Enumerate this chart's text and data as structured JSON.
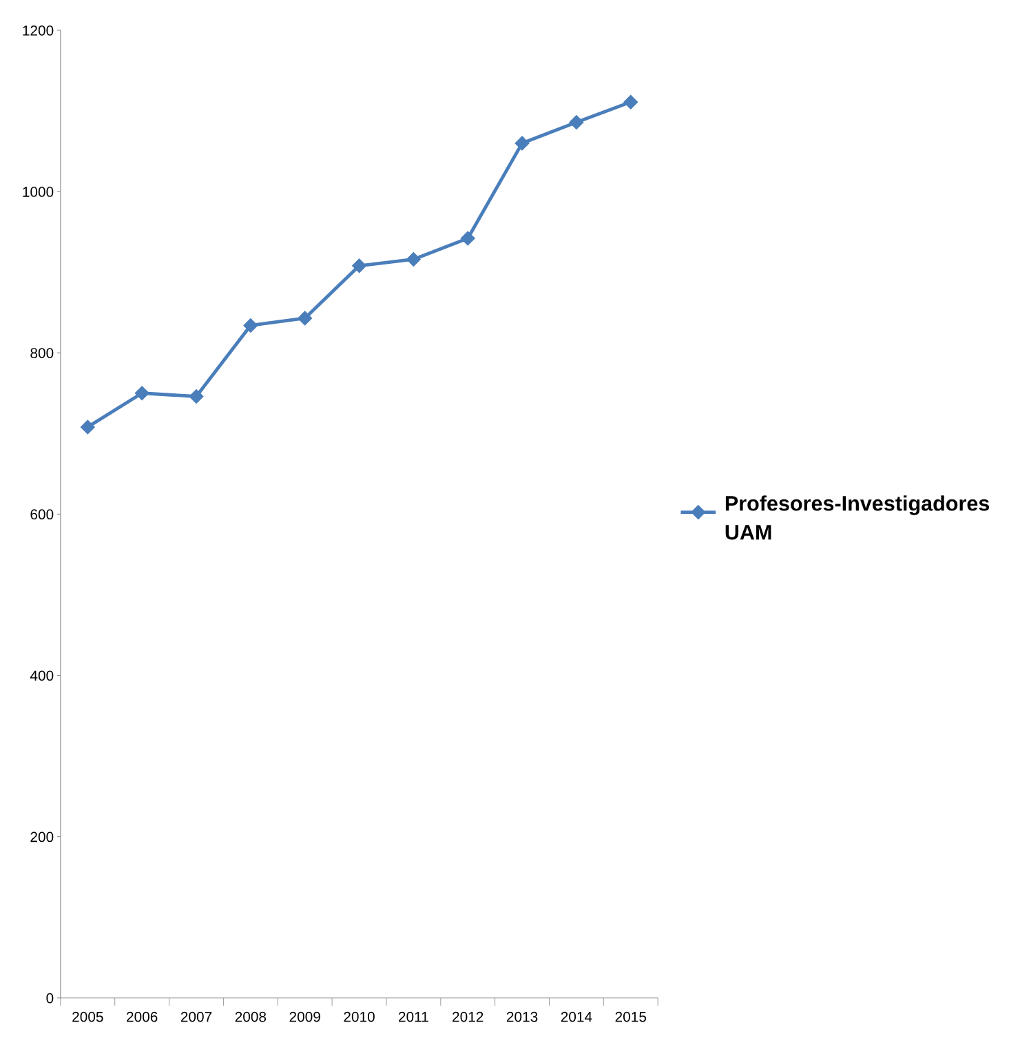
{
  "chart_data": {
    "type": "line",
    "categories": [
      "2005",
      "2006",
      "2007",
      "2008",
      "2009",
      "2010",
      "2011",
      "2012",
      "2013",
      "2014",
      "2015"
    ],
    "series": [
      {
        "name": "Profesores-Investigadores UAM",
        "color": "#4a7ebb",
        "values": [
          708,
          750,
          746,
          834,
          843,
          908,
          916,
          942,
          1060,
          1086,
          1111
        ]
      }
    ],
    "ylim": [
      0,
      1200
    ],
    "yticks": [
      0,
      200,
      400,
      600,
      800,
      1000,
      1200
    ],
    "grid": false,
    "legend": "right",
    "marker": "diamond",
    "line_style": "solid"
  }
}
